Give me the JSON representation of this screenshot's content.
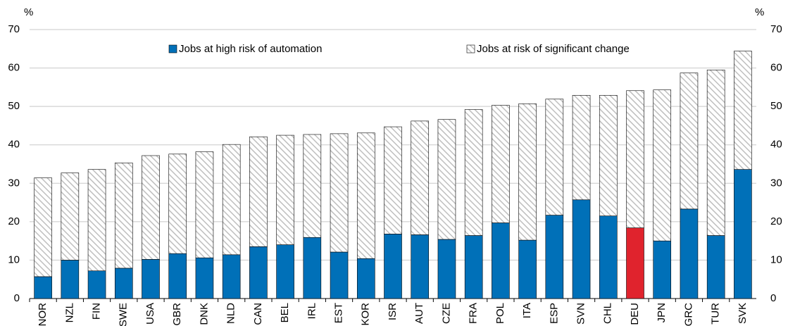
{
  "chart_data": {
    "type": "stacked_bar",
    "categories": [
      "NOR",
      "NZL",
      "FIN",
      "SWE",
      "USA",
      "GBR",
      "DNK",
      "NLD",
      "CAN",
      "BEL",
      "IRL",
      "EST",
      "KOR",
      "ISR",
      "AUT",
      "CZE",
      "FRA",
      "POL",
      "ITA",
      "ESP",
      "SVN",
      "CHL",
      "DEU",
      "JPN",
      "GRC",
      "TUR",
      "SVK"
    ],
    "series": [
      {
        "name": "Jobs at high risk of automation",
        "color": "#0070b8",
        "colors": [
          "#0070b8",
          "#0070b8",
          "#0070b8",
          "#0070b8",
          "#0070b8",
          "#0070b8",
          "#0070b8",
          "#0070b8",
          "#0070b8",
          "#0070b8",
          "#0070b8",
          "#0070b8",
          "#0070b8",
          "#0070b8",
          "#0070b8",
          "#0070b8",
          "#0070b8",
          "#0070b8",
          "#0070b8",
          "#0070b8",
          "#0070b8",
          "#0070b8",
          "#e0232d",
          "#0070b8",
          "#0070b8",
          "#0070b8",
          "#0070b8"
        ],
        "values": [
          5.7,
          10.0,
          7.2,
          7.9,
          10.2,
          11.7,
          10.6,
          11.4,
          13.5,
          14.0,
          15.9,
          12.1,
          10.4,
          16.8,
          16.6,
          15.4,
          16.4,
          19.7,
          15.2,
          21.7,
          25.7,
          21.5,
          18.4,
          15.0,
          23.3,
          16.4,
          33.6
        ]
      },
      {
        "name": "Jobs at risk of significant change",
        "color": "#bfbfbf",
        "pattern": "hatch",
        "values": [
          25.7,
          22.7,
          26.4,
          27.4,
          27.0,
          25.9,
          27.6,
          28.7,
          28.6,
          28.5,
          26.8,
          30.8,
          32.7,
          27.9,
          29.6,
          31.2,
          32.8,
          30.6,
          35.5,
          30.2,
          27.2,
          31.4,
          35.7,
          39.3,
          35.4,
          43.1,
          30.8
        ]
      }
    ],
    "ylabel": "%",
    "y2label": "%",
    "ylim": [
      0,
      70
    ],
    "yticks": [
      0,
      10,
      20,
      30,
      40,
      50,
      60,
      70
    ],
    "y2lim": [
      0,
      70
    ],
    "y2ticks": [
      0,
      10,
      20,
      30,
      40,
      50,
      60,
      70
    ],
    "grid": true
  }
}
